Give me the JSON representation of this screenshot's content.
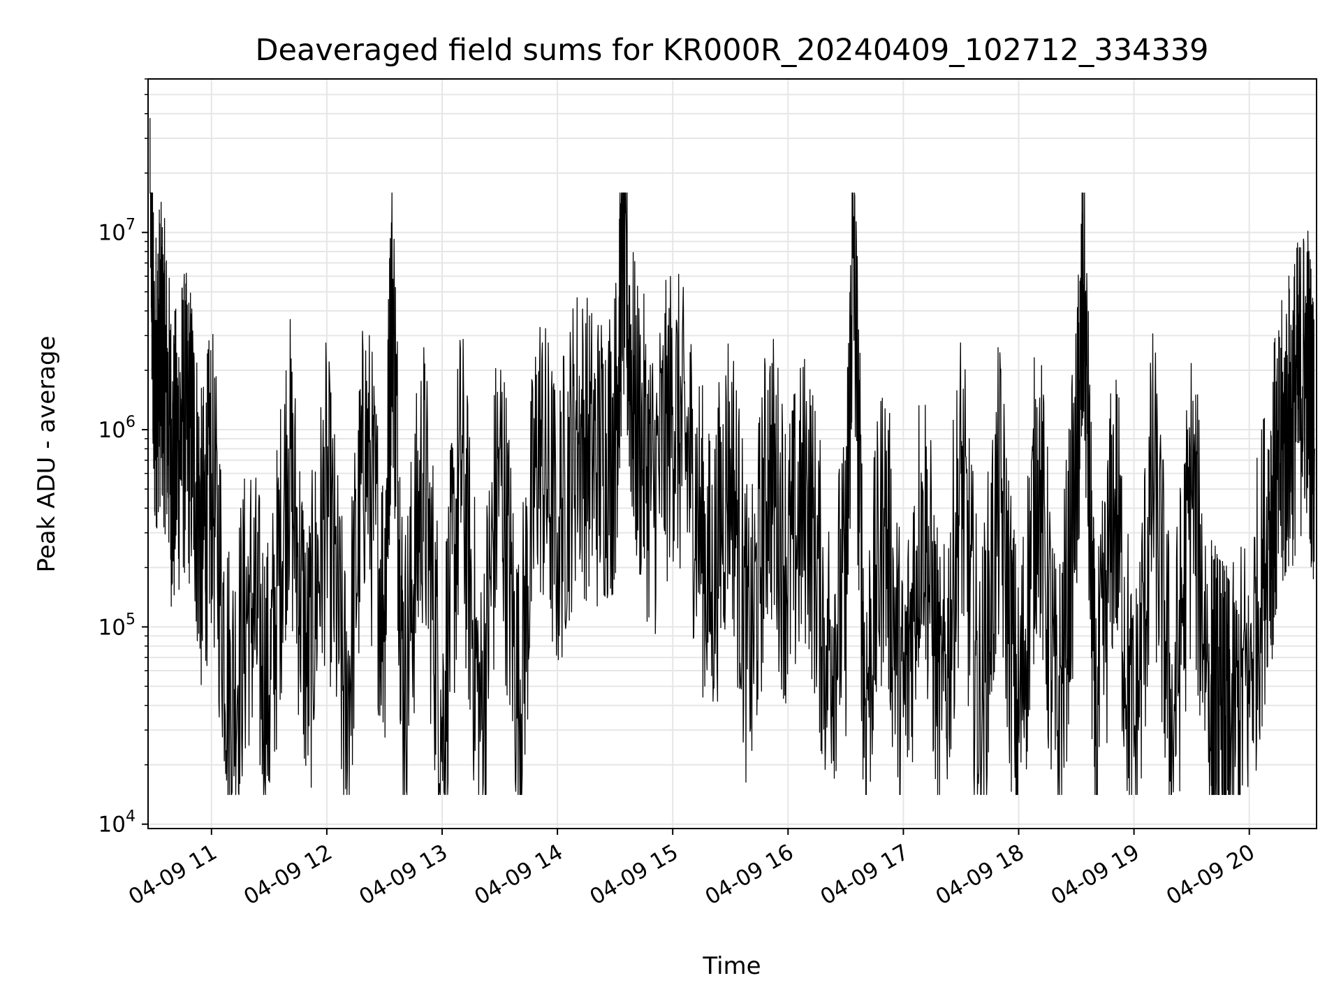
{
  "chart_data": {
    "type": "line",
    "title": "Deaveraged field sums for KR000R_20240409_102712_334339",
    "xlabel": "Time",
    "ylabel": "Peak ADU - average",
    "yscale": "log",
    "xlim": [
      "2024-04-09 10:27",
      "2024-04-09 20:35"
    ],
    "ylim": [
      9500,
      60000000
    ],
    "grid": true,
    "line_color": "#000000",
    "grid_color": "#e6e6e6",
    "x_ticks": [
      {
        "value": "2024-04-09 11:00",
        "label": "04-09 11"
      },
      {
        "value": "2024-04-09 12:00",
        "label": "04-09 12"
      },
      {
        "value": "2024-04-09 13:00",
        "label": "04-09 13"
      },
      {
        "value": "2024-04-09 14:00",
        "label": "04-09 14"
      },
      {
        "value": "2024-04-09 15:00",
        "label": "04-09 15"
      },
      {
        "value": "2024-04-09 16:00",
        "label": "04-09 16"
      },
      {
        "value": "2024-04-09 17:00",
        "label": "04-09 17"
      },
      {
        "value": "2024-04-09 18:00",
        "label": "04-09 18"
      },
      {
        "value": "2024-04-09 19:00",
        "label": "04-09 19"
      },
      {
        "value": "2024-04-09 20:00",
        "label": "04-09 20"
      }
    ],
    "y_ticks": [
      {
        "value": 10000,
        "base": "10",
        "exp": "4"
      },
      {
        "value": 100000,
        "base": "10",
        "exp": "5"
      },
      {
        "value": 1000000,
        "base": "10",
        "exp": "6"
      },
      {
        "value": 10000000,
        "base": "10",
        "exp": "7"
      }
    ],
    "series": [
      {
        "x": [
          "2024-04-09 10:28",
          "2024-04-09 10:30",
          "2024-04-09 10:33",
          "2024-04-09 10:36",
          "2024-04-09 10:40",
          "2024-04-09 10:45",
          "2024-04-09 10:50",
          "2024-04-09 10:55",
          "2024-04-09 11:00",
          "2024-04-09 11:10",
          "2024-04-09 11:20",
          "2024-04-09 11:30",
          "2024-04-09 11:40",
          "2024-04-09 11:50",
          "2024-04-09 12:00",
          "2024-04-09 12:10",
          "2024-04-09 12:20",
          "2024-04-09 12:30",
          "2024-04-09 12:34",
          "2024-04-09 12:40",
          "2024-04-09 12:50",
          "2024-04-09 13:00",
          "2024-04-09 13:10",
          "2024-04-09 13:20",
          "2024-04-09 13:30",
          "2024-04-09 13:40",
          "2024-04-09 13:50",
          "2024-04-09 14:00",
          "2024-04-09 14:10",
          "2024-04-09 14:20",
          "2024-04-09 14:30",
          "2024-04-09 14:34",
          "2024-04-09 14:40",
          "2024-04-09 14:50",
          "2024-04-09 15:00",
          "2024-04-09 15:10",
          "2024-04-09 15:20",
          "2024-04-09 15:30",
          "2024-04-09 15:40",
          "2024-04-09 15:50",
          "2024-04-09 16:00",
          "2024-04-09 16:10",
          "2024-04-09 16:20",
          "2024-04-09 16:30",
          "2024-04-09 16:34",
          "2024-04-09 16:40",
          "2024-04-09 16:50",
          "2024-04-09 17:00",
          "2024-04-09 17:10",
          "2024-04-09 17:20",
          "2024-04-09 17:30",
          "2024-04-09 17:40",
          "2024-04-09 17:50",
          "2024-04-09 18:00",
          "2024-04-09 18:10",
          "2024-04-09 18:20",
          "2024-04-09 18:30",
          "2024-04-09 18:34",
          "2024-04-09 18:40",
          "2024-04-09 18:50",
          "2024-04-09 19:00",
          "2024-04-09 19:10",
          "2024-04-09 19:20",
          "2024-04-09 19:30",
          "2024-04-09 19:40",
          "2024-04-09 19:45",
          "2024-04-09 19:50",
          "2024-04-09 20:00",
          "2024-04-09 20:10",
          "2024-04-09 20:15",
          "2024-04-09 20:20",
          "2024-04-09 20:25",
          "2024-04-09 20:30",
          "2024-04-09 20:34"
        ],
        "y": [
          38000000,
          1500000,
          2500000,
          1800000,
          600000,
          1100000,
          900000,
          250000,
          600000,
          40000,
          150000,
          45000,
          800000,
          60000,
          500000,
          35000,
          900000,
          120000,
          5800000,
          50000,
          600000,
          35000,
          700000,
          30000,
          800000,
          40000,
          900000,
          300000,
          1000000,
          700000,
          900000,
          8400000,
          1200000,
          500000,
          1300000,
          600000,
          150000,
          800000,
          60000,
          700000,
          200000,
          500000,
          80000,
          150000,
          10000000,
          40000,
          400000,
          35000,
          500000,
          30000,
          600000,
          35000,
          500000,
          30000,
          700000,
          28000,
          600000,
          5400000,
          25000,
          500000,
          22000,
          600000,
          30000,
          500000,
          50000,
          40000,
          30000,
          60000,
          350000,
          600000,
          1000000,
          1500000,
          2200000,
          800000
        ]
      }
    ]
  }
}
